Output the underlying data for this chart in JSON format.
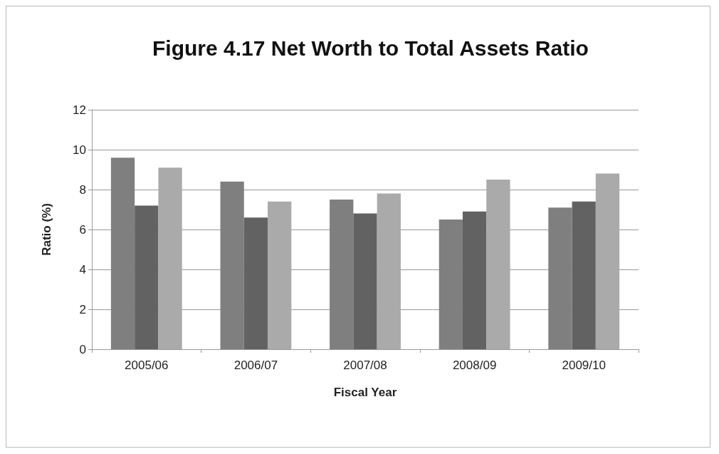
{
  "chart_data": {
    "type": "bar",
    "title": "Figure 4.17 Net Worth to Total Assets Ratio",
    "xlabel": "Fiscal Year",
    "ylabel": "Ratio (%)",
    "categories": [
      "2005/06",
      "2006/07",
      "2007/08",
      "2008/09",
      "2009/10"
    ],
    "series": [
      {
        "color": "#7f7f7f",
        "values": [
          9.6,
          8.4,
          7.5,
          6.5,
          7.1
        ]
      },
      {
        "color": "#626262",
        "values": [
          7.2,
          6.6,
          6.8,
          6.9,
          7.4
        ]
      },
      {
        "color": "#aaaaaa",
        "values": [
          9.1,
          7.4,
          7.8,
          8.5,
          8.8
        ]
      }
    ],
    "ylim": [
      0,
      12
    ],
    "yticks": [
      0,
      2,
      4,
      6,
      8,
      10,
      12
    ],
    "grid": "y"
  }
}
